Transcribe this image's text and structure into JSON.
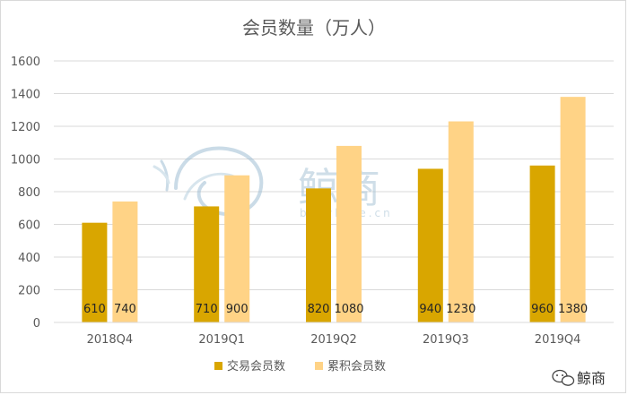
{
  "chart_data": {
    "type": "bar",
    "title": "会员数量（万人）",
    "categories": [
      "2018Q4",
      "2019Q1",
      "2019Q2",
      "2019Q3",
      "2019Q4"
    ],
    "series": [
      {
        "name": "交易会员数",
        "values": [
          610,
          710,
          820,
          940,
          960
        ],
        "color": "#d9a600"
      },
      {
        "name": "累积会员数",
        "values": [
          740,
          900,
          1080,
          1230,
          1380
        ],
        "color": "#ffd386"
      }
    ],
    "ylim": [
      0,
      1600
    ],
    "yticks": [
      0,
      200,
      400,
      600,
      800,
      1000,
      1200,
      1400,
      1600
    ],
    "grid": true,
    "gridColor": "#d9d9d9",
    "legend": "bottom-center",
    "xlabel": "",
    "ylabel": ""
  },
  "watermark": {
    "title": "鲸商",
    "subtitle": "bizwhale.cn"
  },
  "brand": {
    "label": "鲸商",
    "icon": "wechat-icon"
  }
}
